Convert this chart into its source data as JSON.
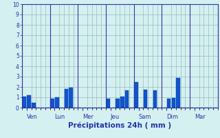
{
  "title": "",
  "xlabel": "Précipitations 24h ( mm )",
  "ylabel": "",
  "background_color": "#d4f0f0",
  "bar_color": "#1155cc",
  "bar_edge_color": "#0033aa",
  "grid_color": "#99bbbb",
  "axis_color": "#3333aa",
  "text_color": "#2233aa",
  "ylim": [
    0,
    10
  ],
  "yticks": [
    0,
    1,
    2,
    3,
    4,
    5,
    6,
    7,
    8,
    9,
    10
  ],
  "day_labels": [
    "Ven",
    "Lun",
    "Mer",
    "Jeu",
    "Sam",
    "Dim",
    "Mar"
  ],
  "num_bars": 42,
  "bar_values": [
    1.1,
    1.2,
    0.5,
    0.0,
    0.0,
    0.0,
    0.9,
    1.0,
    0.0,
    1.8,
    1.95,
    0.0,
    0.0,
    0.0,
    0.0,
    0.0,
    0.0,
    0.0,
    0.85,
    0.0,
    0.9,
    1.05,
    1.7,
    0.0,
    2.5,
    0.0,
    1.75,
    0.0,
    1.65,
    0.0,
    0.0,
    0.85,
    0.95,
    2.9,
    0.0,
    0.0,
    0.0,
    0.0,
    0.0,
    0.0,
    0.0,
    0.0
  ],
  "day_tick_positions": [
    0.5,
    6.5,
    12.5,
    18.5,
    24.5,
    30.5,
    36.5
  ],
  "bar_width": 0.8
}
